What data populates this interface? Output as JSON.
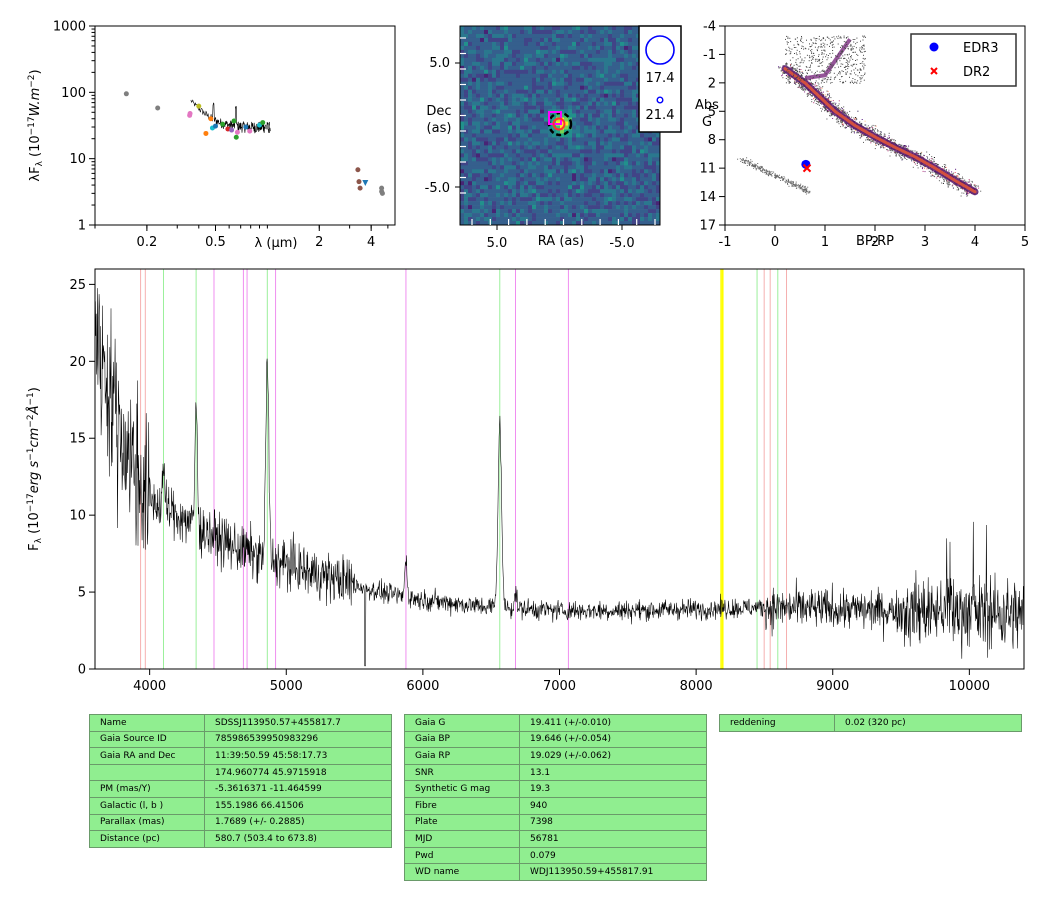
{
  "chart_data": [
    {
      "type": "scatter",
      "panel": "sed",
      "xlabel": "λ (μm)",
      "ylabel": "λF_λ (10^-17 W.m^-2)",
      "xscale": "log",
      "yscale": "log",
      "xlim": [
        0.1,
        5.5
      ],
      "ylim": [
        1,
        1000
      ],
      "x_ticks": [
        {
          "v": 0.2,
          "label": "0.2"
        },
        {
          "v": 0.5,
          "label": "0.5"
        },
        {
          "v": 2,
          "label": "2"
        },
        {
          "v": 4,
          "label": "4"
        }
      ],
      "y_ticks": [
        {
          "v": 1,
          "label": "1"
        },
        {
          "v": 10,
          "label": "10"
        },
        {
          "v": 100,
          "label": "100"
        },
        {
          "v": 1000,
          "label": "1000"
        }
      ],
      "points": [
        {
          "x": 0.152,
          "y": 95,
          "color": "#7f7f7f"
        },
        {
          "x": 0.231,
          "y": 58,
          "color": "#7f7f7f"
        },
        {
          "x": 0.354,
          "y": 45,
          "color": "#e377c2"
        },
        {
          "x": 0.356,
          "y": 48,
          "color": "#e377c2"
        },
        {
          "x": 0.4,
          "y": 62,
          "color": "#bcbd22"
        },
        {
          "x": 0.44,
          "y": 24,
          "color": "#ff7f0e"
        },
        {
          "x": 0.47,
          "y": 40,
          "color": "#ff7f0e"
        },
        {
          "x": 0.48,
          "y": 29,
          "color": "#17becf"
        },
        {
          "x": 0.5,
          "y": 31,
          "color": "#1f77b4"
        },
        {
          "x": 0.55,
          "y": 33,
          "color": "#2ca02c"
        },
        {
          "x": 0.59,
          "y": 28,
          "color": "#d62728"
        },
        {
          "x": 0.62,
          "y": 27,
          "color": "#9467bd"
        },
        {
          "x": 0.64,
          "y": 37,
          "color": "#2ca02c"
        },
        {
          "x": 0.66,
          "y": 21,
          "color": "#2ca02c"
        },
        {
          "x": 0.67,
          "y": 25,
          "color": "#e377c2"
        },
        {
          "x": 0.75,
          "y": 30,
          "color": "#1f77b4"
        },
        {
          "x": 0.79,
          "y": 26,
          "color": "#e377c2"
        },
        {
          "x": 0.9,
          "y": 32,
          "color": "#17becf"
        },
        {
          "x": 0.94,
          "y": 35,
          "color": "#2ca02c"
        },
        {
          "x": 1.0,
          "y": 30,
          "color": "#7f7f7f"
        },
        {
          "x": 3.35,
          "y": 6.8,
          "color": "#8c564b"
        },
        {
          "x": 3.4,
          "y": 4.5,
          "color": "#8c564b"
        },
        {
          "x": 3.45,
          "y": 3.6,
          "color": "#8c564b"
        },
        {
          "x": 3.7,
          "y": 4.3,
          "color": "#1f77b4"
        },
        {
          "x": 4.6,
          "y": 3.6,
          "color": "#7f7f7f"
        },
        {
          "x": 4.6,
          "y": 3.2,
          "color": "#7f7f7f"
        },
        {
          "x": 4.65,
          "y": 3.0,
          "color": "#7f7f7f"
        }
      ],
      "spectrum_range_um": [
        0.36,
        1.04
      ]
    },
    {
      "type": "heatmap",
      "panel": "image",
      "xlabel": "RA (as)",
      "ylabel": "Dec (as)",
      "x_ticks": [
        "5.0",
        "-5.0"
      ],
      "y_ticks": [
        "5.0",
        "-5.0"
      ],
      "legend": [
        {
          "label": "17.4"
        },
        {
          "label": "21.4"
        }
      ]
    },
    {
      "type": "scatter",
      "panel": "hr",
      "xlabel": "BP-RP",
      "ylabel": "Abs G",
      "xlim": [
        -1,
        5
      ],
      "ylim": [
        17,
        -4
      ],
      "x_ticks": [
        "-1",
        "0",
        "1",
        "2",
        "3",
        "4",
        "5"
      ],
      "y_ticks": [
        "-4",
        "-1",
        "2",
        "5",
        "8",
        "11",
        "14",
        "17"
      ],
      "points": [
        {
          "name": "EDR3",
          "x": 0.617,
          "y": 10.6,
          "color": "#0000ff",
          "marker": "circle"
        },
        {
          "name": "DR2",
          "x": 0.64,
          "y": 11.0,
          "color": "#ff0000",
          "marker": "x"
        }
      ],
      "legend_position": "top-right"
    },
    {
      "type": "line",
      "panel": "spectrum",
      "xlabel": "",
      "ylabel": "F_λ (10^-17 erg s^-1 cm^-2 Å^-1)",
      "xlim": [
        3600,
        10400
      ],
      "ylim": [
        0,
        26
      ],
      "x_ticks": [
        4000,
        5000,
        6000,
        7000,
        8000,
        9000,
        10000
      ],
      "y_ticks": [
        0,
        5,
        10,
        15,
        20,
        25
      ],
      "continuum": [
        [
          3600,
          22
        ],
        [
          3800,
          15
        ],
        [
          4000,
          11
        ],
        [
          4200,
          10
        ],
        [
          4400,
          9
        ],
        [
          4600,
          8
        ],
        [
          4800,
          7.3
        ],
        [
          5000,
          6.8
        ],
        [
          5200,
          6.2
        ],
        [
          5400,
          5.8
        ],
        [
          5600,
          5.2
        ],
        [
          5800,
          4.8
        ],
        [
          6000,
          4.5
        ],
        [
          6200,
          4.3
        ],
        [
          6400,
          4.1
        ],
        [
          6600,
          4.0
        ],
        [
          6800,
          3.9
        ],
        [
          7000,
          3.8
        ],
        [
          7200,
          3.8
        ],
        [
          7500,
          3.8
        ],
        [
          8000,
          3.9
        ],
        [
          8500,
          4.0
        ],
        [
          9000,
          3.9
        ],
        [
          9500,
          3.8
        ],
        [
          10000,
          3.7
        ],
        [
          10400,
          3.5
        ]
      ],
      "emission_lines": [
        {
          "center": 4101,
          "height": 3,
          "width": 10
        },
        {
          "center": 4340,
          "height": 8,
          "width": 12
        },
        {
          "center": 4861,
          "height": 13,
          "width": 15
        },
        {
          "center": 5876,
          "height": 2.5,
          "width": 12
        },
        {
          "center": 6563,
          "height": 12,
          "width": 18
        },
        {
          "center": 6678,
          "height": 1,
          "width": 12
        }
      ],
      "vlines": [
        {
          "x": 3934,
          "color": "#f4a7a7"
        },
        {
          "x": 3968,
          "color": "#f4a7a7"
        },
        {
          "x": 4101,
          "color": "#90ee90"
        },
        {
          "x": 4340,
          "color": "#90ee90"
        },
        {
          "x": 4471,
          "color": "#ee82ee"
        },
        {
          "x": 4686,
          "color": "#ee82ee"
        },
        {
          "x": 4713,
          "color": "#ee82ee"
        },
        {
          "x": 4861,
          "color": "#90ee90"
        },
        {
          "x": 4922,
          "color": "#ee82ee"
        },
        {
          "x": 5876,
          "color": "#ee82ee"
        },
        {
          "x": 6563,
          "color": "#90ee90"
        },
        {
          "x": 6678,
          "color": "#ee82ee"
        },
        {
          "x": 7065,
          "color": "#ee82ee"
        },
        {
          "x": 8183,
          "color": "#ffff00"
        },
        {
          "x": 8195,
          "color": "#ffff00"
        },
        {
          "x": 8446,
          "color": "#90ee90"
        },
        {
          "x": 8498,
          "color": "#f4a7a7"
        },
        {
          "x": 8542,
          "color": "#f4a7a7"
        },
        {
          "x": 8598,
          "color": "#90ee90"
        },
        {
          "x": 8662,
          "color": "#f4a7a7"
        }
      ]
    }
  ],
  "tables": {
    "left": [
      [
        "Name",
        "SDSSJ113950.57+455817.7"
      ],
      [
        "Gaia Source ID",
        "785986539950983296"
      ],
      [
        "Gaia RA and Dec",
        "11:39:50.59    45:58:17.73"
      ],
      [
        "",
        "174.960774    45.9715918"
      ],
      [
        "PM (mas/Y)",
        "-5.3616371    -11.464599"
      ],
      [
        "Galactic (l, b )",
        "155.1986    66.41506"
      ],
      [
        "Parallax (mas)",
        "1.7689 (+/- 0.2885)"
      ],
      [
        "Distance (pc)",
        "580.7 (503.4 to 673.8)"
      ]
    ],
    "middle": [
      [
        "Gaia G",
        "19.411 (+/-0.010)"
      ],
      [
        "Gaia BP",
        "19.646 (+/-0.054)"
      ],
      [
        "Gaia RP",
        "19.029 (+/-0.062)"
      ],
      [
        "SNR",
        "13.1"
      ],
      [
        "Synthetic G mag",
        "19.3"
      ],
      [
        "Fibre",
        "940"
      ],
      [
        "Plate",
        "7398"
      ],
      [
        "MJD",
        "56781"
      ],
      [
        "Pwd",
        "0.079"
      ],
      [
        "WD name",
        "WDJ113950.59+455817.91"
      ]
    ],
    "right": [
      [
        "reddening",
        "0.02 (320 pc)"
      ]
    ]
  }
}
